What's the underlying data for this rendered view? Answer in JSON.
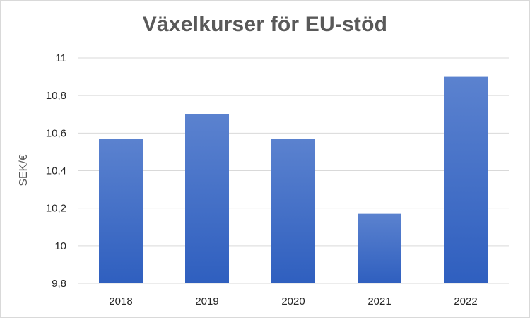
{
  "chart_data": {
    "type": "bar",
    "title": "Växelkurser för EU-stöd",
    "xlabel": "",
    "ylabel": "SEK/€",
    "categories": [
      "2018",
      "2019",
      "2020",
      "2021",
      "2022"
    ],
    "values": [
      10.57,
      10.7,
      10.57,
      10.17,
      10.9
    ],
    "ylim": [
      9.8,
      11
    ],
    "yticks": [
      "9,8",
      "10",
      "10,2",
      "10,4",
      "10,6",
      "10,8",
      "11"
    ],
    "ytick_values": [
      9.8,
      10,
      10.2,
      10.4,
      10.6,
      10.8,
      11
    ],
    "grid": true,
    "legend": "none",
    "colors": {
      "bar_top": "#5b82cf",
      "bar_bottom": "#2f5fbf",
      "grid": "#d9d9d9",
      "title": "#595959"
    }
  }
}
